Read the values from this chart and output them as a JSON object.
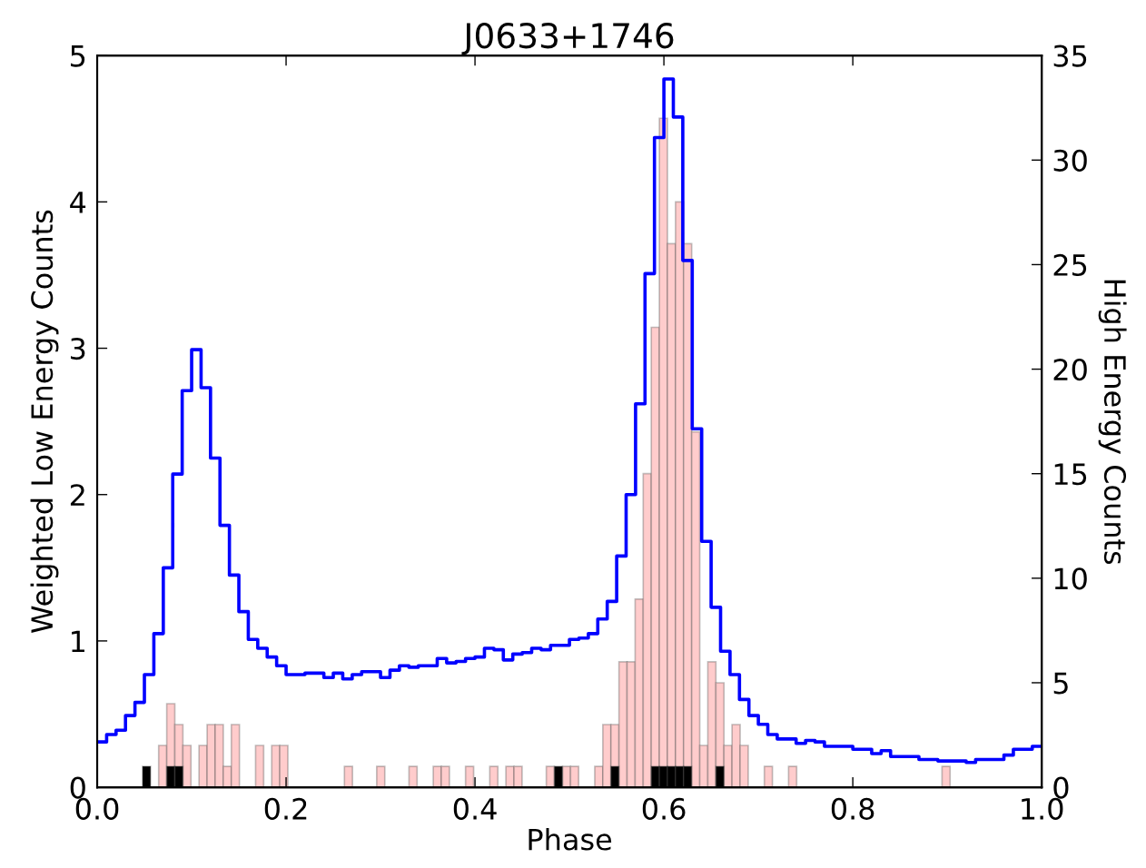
{
  "chart_data": {
    "type": "histogram",
    "title": "J0633+1746",
    "xlabel": "Phase",
    "ylabel": "Weighted Low Energy Counts",
    "y2label": "High Energy Counts",
    "xlim": [
      0,
      1
    ],
    "xticks": [
      {
        "value": 0,
        "label": "0.0"
      },
      0.2,
      0.4,
      0.6,
      0.8,
      {
        "value": 1,
        "label": "1.0"
      }
    ],
    "ylim": [
      0,
      5
    ],
    "yticks": [
      0,
      1,
      2,
      3,
      4,
      5
    ],
    "y2lim": [
      0,
      35
    ],
    "y2ticks": [
      0,
      5,
      10,
      15,
      20,
      25,
      30,
      35
    ],
    "bins": [
      0.048,
      0.05655,
      0.0651,
      0.07365,
      0.0822,
      0.09075,
      0.0993,
      0.10785,
      0.1164,
      0.12495,
      0.1335,
      0.14205,
      0.1506,
      0.15915,
      0.1677,
      0.17625,
      0.1848,
      0.19335,
      0.2019,
      0.21045,
      0.219,
      0.22755,
      0.2361,
      0.24465,
      0.2532,
      0.26175,
      0.2703,
      0.27885,
      0.2874,
      0.29595,
      0.3045,
      0.31305,
      0.3216,
      0.33015,
      0.3387,
      0.34725,
      0.3558,
      0.36435,
      0.3729,
      0.38145,
      0.39,
      0.39855,
      0.4071,
      0.41565,
      0.4242,
      0.43275,
      0.4413,
      0.44985,
      0.4584,
      0.46695,
      0.4755,
      0.48405,
      0.4926,
      0.50115,
      0.5097,
      0.51825,
      0.5268,
      0.53535,
      0.5439,
      0.55245,
      0.561,
      0.56955,
      0.5781,
      0.58665,
      0.5952,
      0.60375,
      0.6123,
      0.62085,
      0.6294,
      0.63795,
      0.6465,
      0.65505,
      0.6636,
      0.67215,
      0.6807,
      0.68925,
      0.6978,
      0.70635,
      0.7149,
      0.72345,
      0.732,
      0.74055,
      0.7491,
      0.75765,
      0.7662,
      0.77475,
      0.7833,
      0.79185,
      0.8004,
      0.80895,
      0.8175,
      0.82605,
      0.8346,
      0.84315,
      0.8517,
      0.86025,
      0.8688,
      0.87735,
      0.8859,
      0.89445,
      0.903
    ],
    "series": [
      {
        "type": "step",
        "color": "#0000ff",
        "x": [
          0,
          0.01,
          0.02,
          0.03,
          0.04,
          0.05,
          0.06,
          0.07,
          0.08,
          0.09,
          0.1,
          0.11,
          0.12,
          0.13,
          0.14,
          0.15,
          0.16,
          0.17,
          0.18,
          0.19,
          0.2,
          0.21,
          0.22,
          0.23,
          0.24,
          0.25,
          0.26,
          0.27,
          0.28,
          0.29,
          0.3,
          0.31,
          0.32,
          0.33,
          0.34,
          0.35,
          0.36,
          0.37,
          0.38,
          0.39,
          0.4,
          0.41,
          0.42,
          0.43,
          0.44,
          0.45,
          0.46,
          0.47,
          0.48,
          0.49,
          0.5,
          0.51,
          0.52,
          0.53,
          0.54,
          0.55,
          0.56,
          0.57,
          0.58,
          0.59,
          0.6,
          0.61,
          0.62,
          0.63,
          0.64,
          0.65,
          0.66,
          0.67,
          0.68,
          0.69,
          0.7,
          0.71,
          0.72,
          0.73,
          0.74,
          0.75,
          0.76,
          0.77,
          0.78,
          0.79,
          0.8,
          0.81,
          0.82,
          0.83,
          0.84,
          0.85,
          0.86,
          0.87,
          0.88,
          0.89,
          0.9,
          0.91,
          0.92,
          0.93,
          0.94,
          0.95,
          0.96,
          0.97,
          0.98,
          0.99,
          1.0
        ],
        "values": [
          0.31,
          0.36,
          0.39,
          0.49,
          0.58,
          0.77,
          1.05,
          1.5,
          2.14,
          2.71,
          2.99,
          2.73,
          2.25,
          1.79,
          1.45,
          1.2,
          1.01,
          0.95,
          0.89,
          0.83,
          0.77,
          0.77,
          0.78,
          0.78,
          0.75,
          0.78,
          0.74,
          0.77,
          0.79,
          0.79,
          0.75,
          0.8,
          0.83,
          0.82,
          0.83,
          0.83,
          0.88,
          0.85,
          0.86,
          0.88,
          0.89,
          0.95,
          0.94,
          0.87,
          0.91,
          0.92,
          0.95,
          0.94,
          0.97,
          0.97,
          1.01,
          1.02,
          1.05,
          1.15,
          1.27,
          1.58,
          2.0,
          2.62,
          3.51,
          4.44,
          4.84,
          4.58,
          3.6,
          2.45,
          1.68,
          1.23,
          0.93,
          0.77,
          0.6,
          0.49,
          0.43,
          0.36,
          0.33,
          0.33,
          0.3,
          0.32,
          0.31,
          0.28,
          0.28,
          0.28,
          0.26,
          0.26,
          0.23,
          0.25,
          0.21,
          0.21,
          0.21,
          0.19,
          0.19,
          0.18,
          0.18,
          0.18,
          0.17,
          0.19,
          0.19,
          0.19,
          0.22,
          0.26,
          0.26,
          0.28,
          0.28
        ]
      },
      {
        "axis": "y2",
        "color": "#ffcccc",
        "values": [
          0,
          0,
          2,
          4,
          3,
          2,
          0,
          2,
          3,
          3,
          1,
          3,
          0,
          0,
          2,
          0,
          2,
          2,
          0,
          0,
          0,
          0,
          0,
          0,
          0,
          1,
          0,
          0,
          0,
          1,
          0,
          0,
          0,
          1,
          0,
          0,
          1,
          1,
          0,
          0,
          1,
          0,
          0,
          1,
          0,
          1,
          1,
          0,
          0,
          0,
          1,
          0,
          1,
          1,
          0,
          0,
          1,
          3,
          3,
          6,
          6,
          9,
          15,
          22,
          32,
          26,
          28,
          26,
          17,
          2,
          6,
          5,
          2,
          3,
          2,
          0,
          0,
          1,
          0,
          0,
          1,
          0,
          0,
          0,
          0,
          0,
          0,
          0,
          0,
          0,
          0,
          0,
          0,
          0,
          0,
          0,
          0,
          0,
          0,
          1
        ]
      },
      {
        "axis": "y2",
        "color": "#000000",
        "values": [
          1,
          0,
          0,
          1,
          1,
          0,
          0,
          0,
          0,
          0,
          0,
          0,
          0,
          0,
          0,
          0,
          0,
          0,
          0,
          0,
          0,
          0,
          0,
          0,
          0,
          0,
          0,
          0,
          0,
          0,
          0,
          0,
          0,
          0,
          0,
          0,
          0,
          0,
          0,
          0,
          0,
          0,
          0,
          0,
          0,
          0,
          0,
          0,
          0,
          0,
          0,
          1,
          0,
          0,
          0,
          0,
          0,
          0,
          1,
          0,
          0,
          0,
          0,
          1,
          1,
          1,
          1,
          1,
          0,
          0,
          0,
          1,
          0,
          0,
          0,
          0,
          0,
          0,
          0,
          0,
          0,
          0,
          0,
          0,
          0,
          0,
          0,
          0,
          0,
          0,
          0,
          0,
          0,
          0,
          0,
          0,
          0,
          0,
          0,
          0
        ]
      }
    ]
  }
}
